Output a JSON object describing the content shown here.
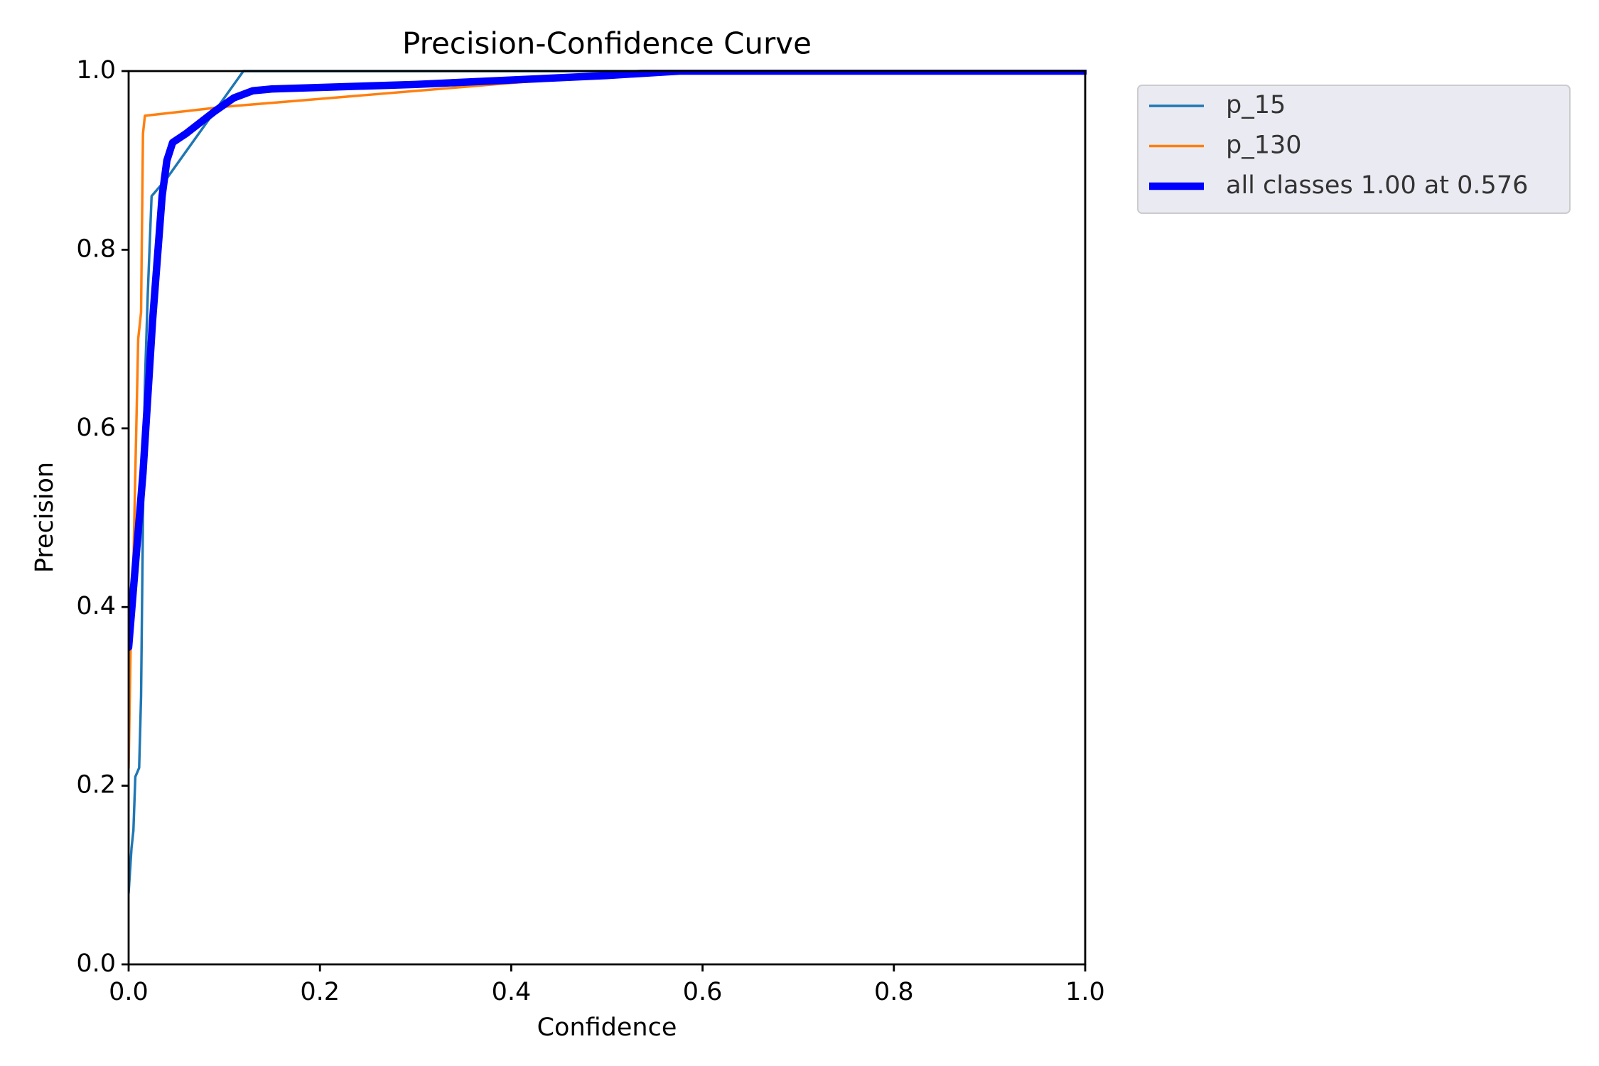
{
  "chart_data": {
    "type": "line",
    "title": "Precision-Confidence Curve",
    "xlabel": "Confidence",
    "ylabel": "Precision",
    "xlim": [
      0,
      1
    ],
    "ylim": [
      0,
      1
    ],
    "xticks": [
      {
        "value": 0,
        "label": "0.0"
      },
      0.2,
      0.4,
      0.6,
      0.8,
      {
        "value": 1,
        "label": "1.0"
      }
    ],
    "yticks": [
      {
        "value": 0,
        "label": "0.0"
      },
      0.2,
      0.4,
      0.6,
      0.8,
      {
        "value": 1,
        "label": "1.0"
      }
    ],
    "grid": false,
    "legend": "outside upper right",
    "series": [
      {
        "name": "p_15",
        "color": "#1f77b4",
        "width": 1,
        "x": [
          0,
          0.003,
          0.005,
          0.007,
          0.011,
          0.013,
          0.015,
          0.017,
          0.02,
          0.024,
          0.04,
          0.12,
          1.0
        ],
        "values": [
          0.08,
          0.13,
          0.15,
          0.21,
          0.22,
          0.3,
          0.5,
          0.65,
          0.75,
          0.86,
          0.88,
          1.0,
          1.0
        ]
      },
      {
        "name": "p_130",
        "color": "#ff7f0e",
        "width": 1,
        "x": [
          0,
          0.002,
          0.005,
          0.01,
          0.013,
          0.015,
          0.017,
          0.1,
          0.55,
          1.0
        ],
        "values": [
          0.22,
          0.35,
          0.45,
          0.7,
          0.73,
          0.93,
          0.95,
          0.96,
          1.0,
          1.0
        ]
      },
      {
        "name": "all classes 1.00 at 0.576",
        "color": "#0000ff",
        "width": 3,
        "x": [
          0,
          0.015,
          0.025,
          0.035,
          0.04,
          0.046,
          0.06,
          0.09,
          0.11,
          0.13,
          0.15,
          0.3,
          0.5,
          0.576,
          1.0
        ],
        "values": [
          0.355,
          0.55,
          0.72,
          0.86,
          0.9,
          0.92,
          0.93,
          0.955,
          0.97,
          0.978,
          0.98,
          0.985,
          0.995,
          1.0,
          1.0
        ]
      }
    ]
  }
}
